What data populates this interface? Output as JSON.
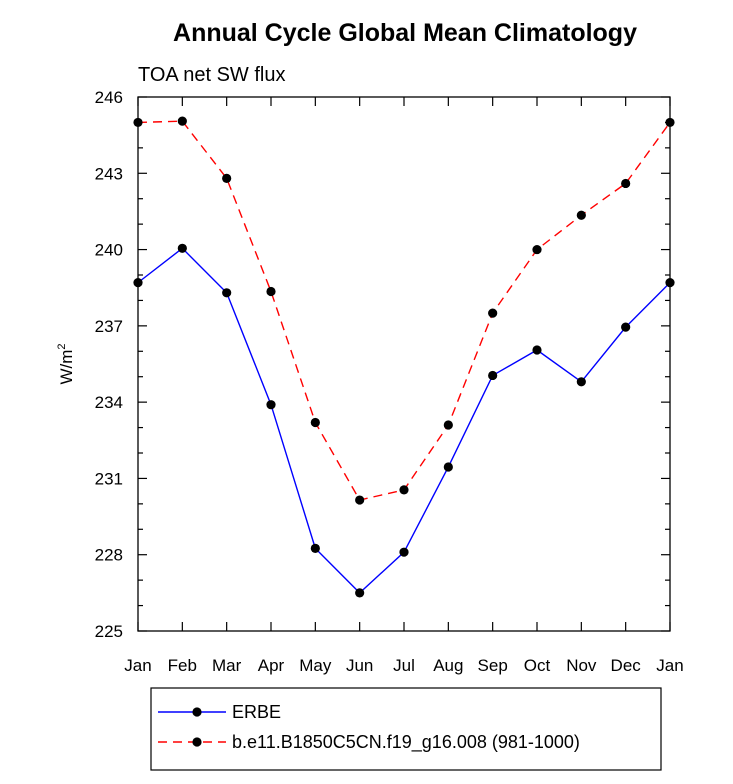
{
  "chart_data": {
    "type": "line",
    "title": "Annual Cycle Global Mean Climatology",
    "subtitle": "TOA net SW flux",
    "ylabel_base": "W/m",
    "ylabel_sup": "2",
    "xlabel": "",
    "categories": [
      "Jan",
      "Feb",
      "Mar",
      "Apr",
      "May",
      "Jun",
      "Jul",
      "Aug",
      "Sep",
      "Oct",
      "Nov",
      "Dec",
      "Jan"
    ],
    "ylim": [
      225,
      246
    ],
    "yticks": [
      225,
      228,
      231,
      234,
      237,
      240,
      243,
      246
    ],
    "ytick_labels": [
      "225",
      "228",
      "231",
      "234",
      "237",
      "240",
      "243",
      "246"
    ],
    "series": [
      {
        "name": "ERBE",
        "color": "#0000ff",
        "dash": "solid",
        "values": [
          238.7,
          240.05,
          238.3,
          233.9,
          228.25,
          226.5,
          228.1,
          231.45,
          235.05,
          236.05,
          234.8,
          236.95,
          238.7
        ]
      },
      {
        "name": "b.e11.B1850C5CN.f19_g16.008 (981-1000)",
        "color": "#ff0000",
        "dash": "dashed",
        "values": [
          245.0,
          245.05,
          242.8,
          238.35,
          233.2,
          230.15,
          230.55,
          233.1,
          237.5,
          240.0,
          241.35,
          242.6,
          245.0
        ]
      }
    ],
    "marker_color": "#000000",
    "legend_position": "bottom-center"
  }
}
